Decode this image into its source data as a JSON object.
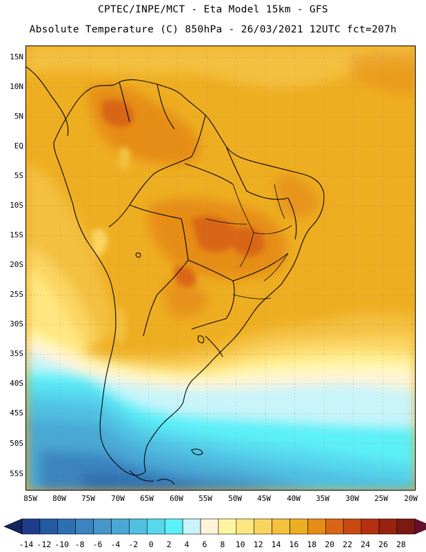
{
  "header": {
    "line1": "CPTEC/INPE/MCT -  Eta Model 15km - GFS",
    "line2": "Absolute Temperature (C) 850hPa - 26/03/2021 12UTC fct=207h"
  },
  "axes": {
    "lat_labels": [
      "15N",
      "10N",
      "5N",
      "EQ",
      "5S",
      "10S",
      "15S",
      "20S",
      "25S",
      "30S",
      "35S",
      "40S",
      "45S",
      "50S",
      "55S"
    ],
    "lon_labels": [
      "85W",
      "80W",
      "75W",
      "70W",
      "65W",
      "60W",
      "55W",
      "50W",
      "45W",
      "40W",
      "35W",
      "30W",
      "25W",
      "20W"
    ]
  },
  "colorbar": {
    "ticks": [
      "-14",
      "-12",
      "-10",
      "-8",
      "-6",
      "-4",
      "-2",
      "0",
      "2",
      "4",
      "6",
      "8",
      "10",
      "12",
      "14",
      "16",
      "18",
      "20",
      "22",
      "24",
      "26",
      "28"
    ],
    "colors": [
      "#1f3c8c",
      "#245aa2",
      "#2e6fb2",
      "#3a84bf",
      "#4697c8",
      "#4aa8d4",
      "#4fc0e2",
      "#56d8ee",
      "#5cf0f8",
      "#c8f4fa",
      "#fff4d6",
      "#fff5a0",
      "#ffe680",
      "#fbd460",
      "#f3c03f",
      "#eeae21",
      "#e68d18",
      "#d96616",
      "#c94a12",
      "#b3310f",
      "#98220e",
      "#7a1a12"
    ],
    "low_arrow_color": "#14245c",
    "high_arrow_color": "#6a0f2c"
  }
}
